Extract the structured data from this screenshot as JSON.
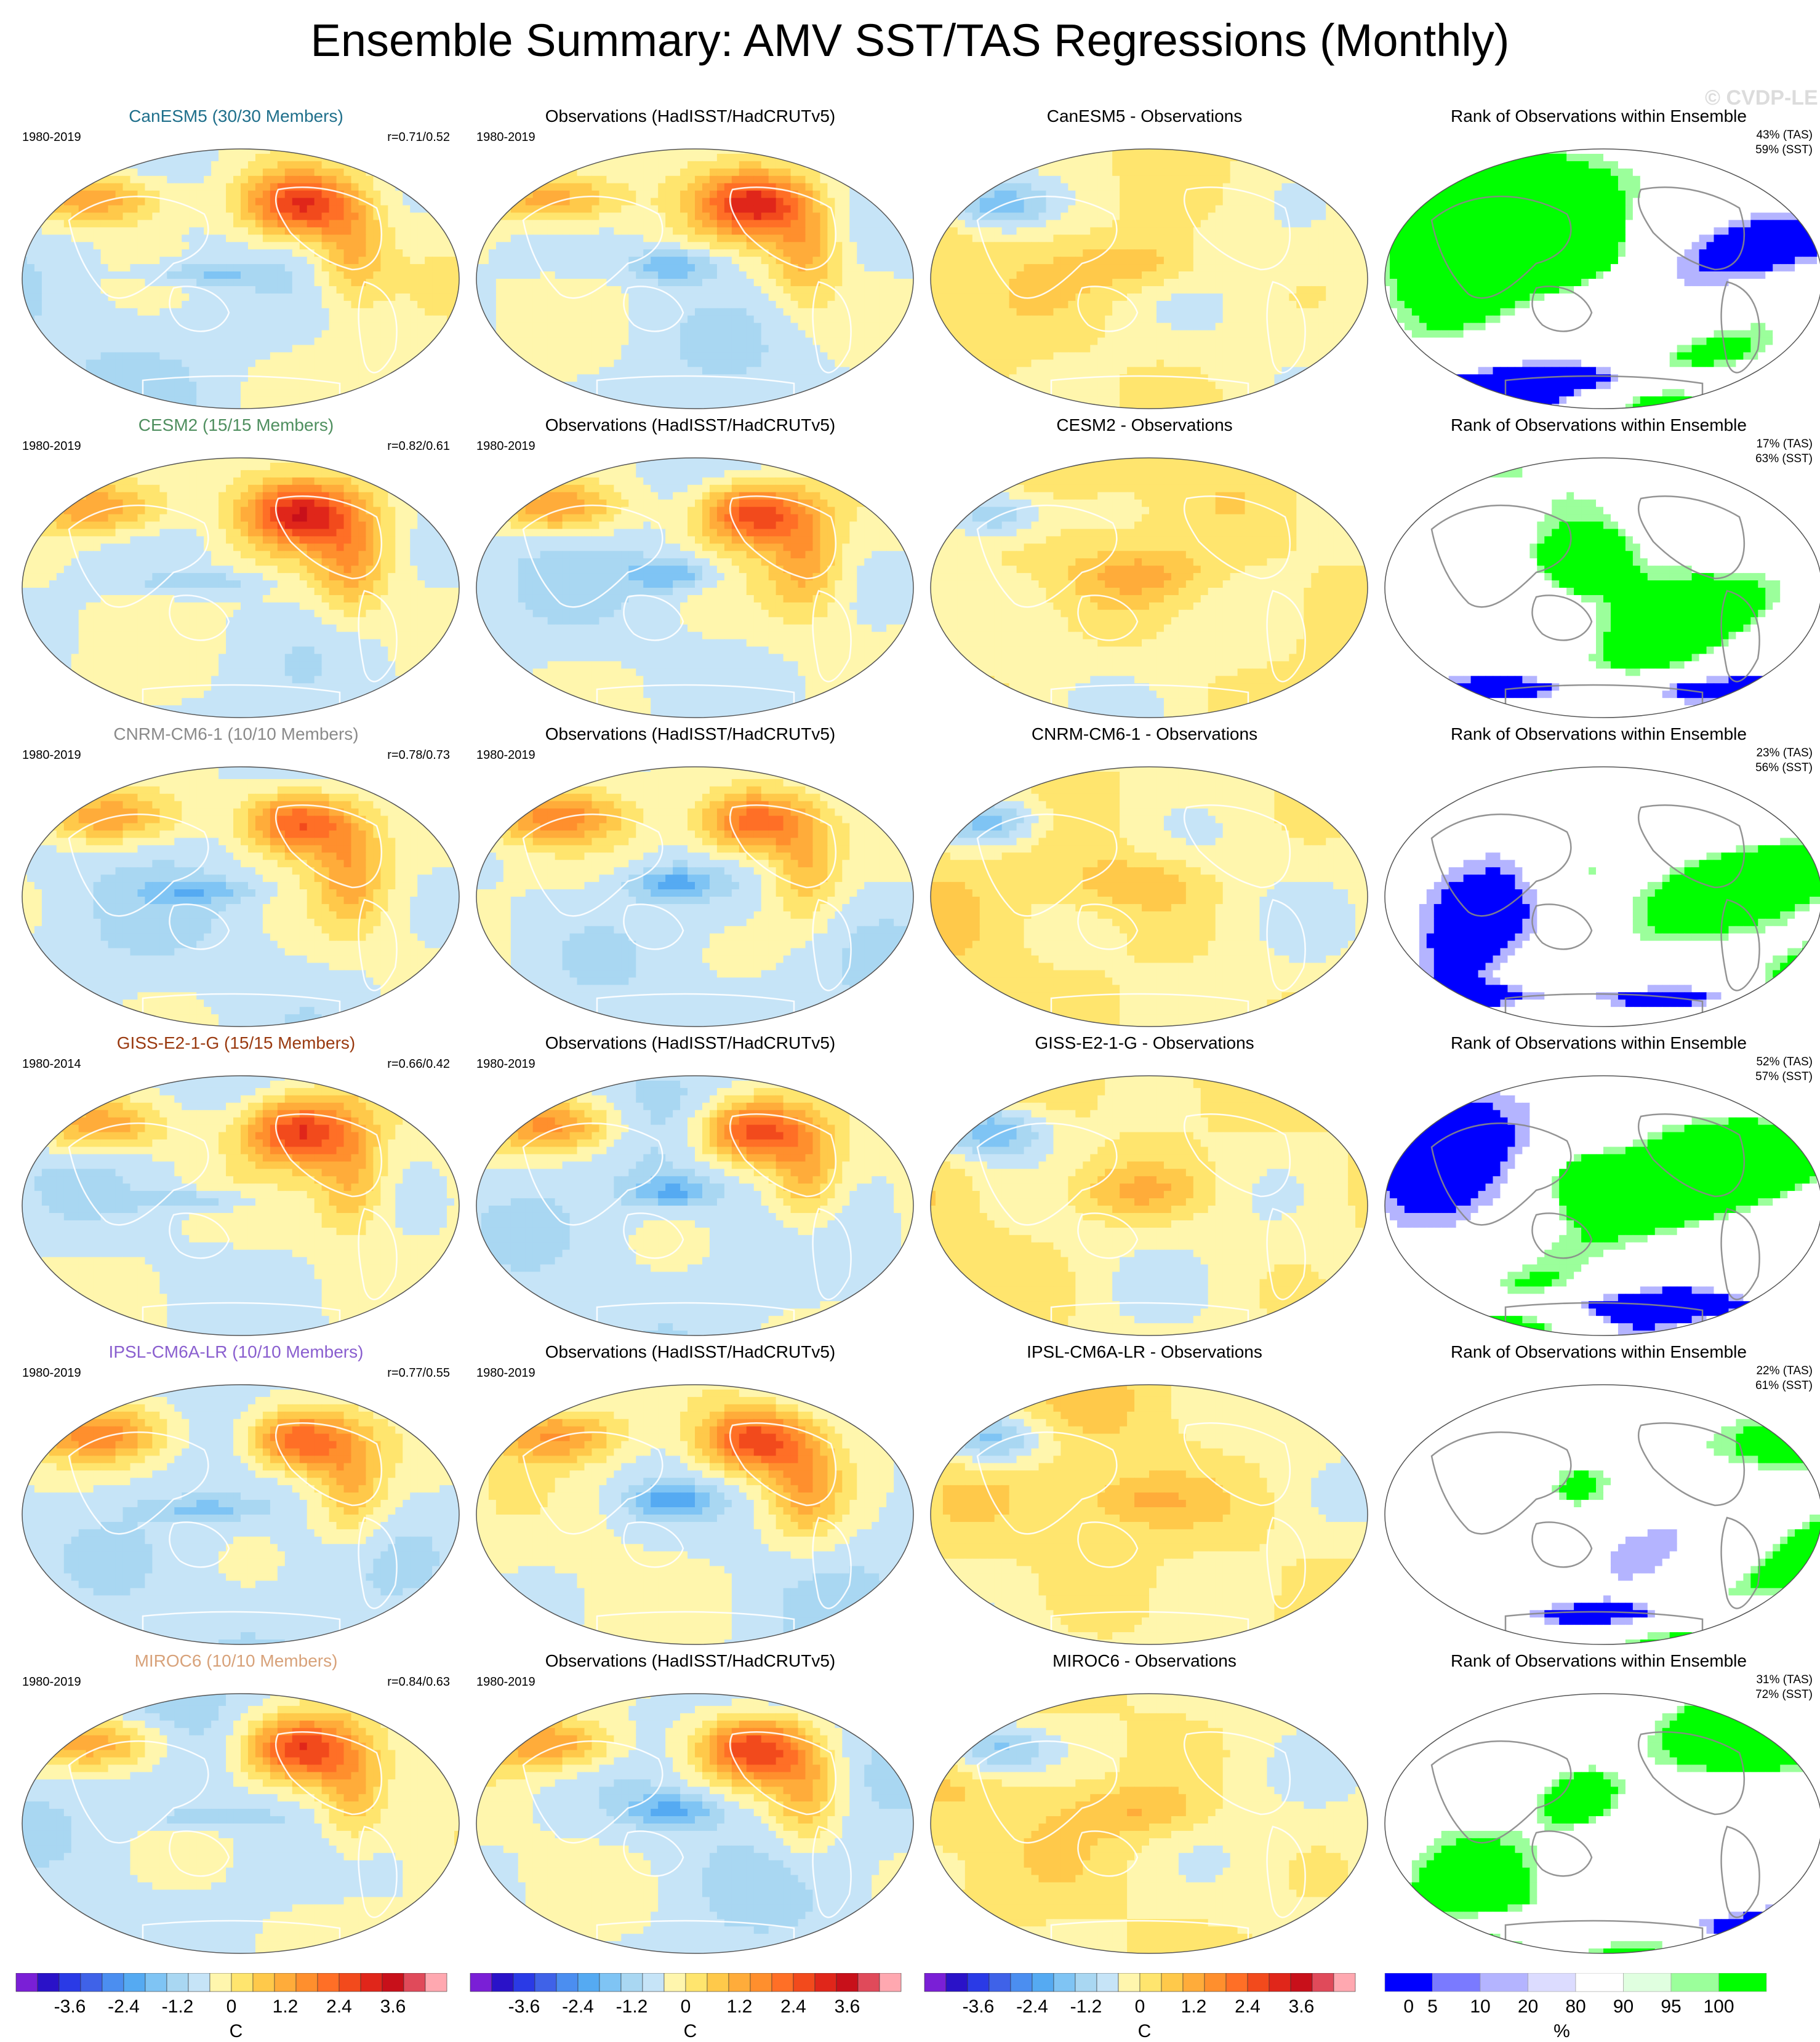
{
  "title": "Ensemble Summary: AMV SST/TAS Regressions (Monthly)",
  "watermark": "© CVDP-LE",
  "obs_title": "Observations (HadISST/HadCRUTv5)",
  "rank_title": "Rank of Observations within Ensemble",
  "colors": {
    "canesm5": "#1f6f8b",
    "cesm2": "#4f8f5f",
    "cnrm": "#8a8a8a",
    "giss": "#9a3a10",
    "ipsl": "#8a5fcf",
    "miroc6": "#d8a27a"
  },
  "rows": [
    {
      "model_title": "CanESM5 (30/30 Members)",
      "color_key": "canesm5",
      "model_years": "1980-2019",
      "corr": "r=0.71/0.52",
      "obs_years": "1980-2019",
      "diff_title": "CanESM5 - Observations",
      "rank_tas": "43% (TAS)",
      "rank_sst": "59% (SST)",
      "seed": 3
    },
    {
      "model_title": "CESM2 (15/15 Members)",
      "color_key": "cesm2",
      "model_years": "1980-2019",
      "corr": "r=0.82/0.61",
      "obs_years": "1980-2019",
      "diff_title": "CESM2 - Observations",
      "rank_tas": "17% (TAS)",
      "rank_sst": "63% (SST)",
      "seed": 7
    },
    {
      "model_title": "CNRM-CM6-1 (10/10 Members)",
      "color_key": "cnrm",
      "model_years": "1980-2019",
      "corr": "r=0.78/0.73",
      "obs_years": "1980-2019",
      "diff_title": "CNRM-CM6-1 - Observations",
      "rank_tas": "23% (TAS)",
      "rank_sst": "56% (SST)",
      "seed": 11
    },
    {
      "model_title": "GISS-E2-1-G (15/15 Members)",
      "color_key": "giss",
      "model_years": "1980-2014",
      "corr": "r=0.66/0.42",
      "obs_years": "1980-2019",
      "diff_title": "GISS-E2-1-G - Observations",
      "rank_tas": "52% (TAS)",
      "rank_sst": "57% (SST)",
      "seed": 13
    },
    {
      "model_title": "IPSL-CM6A-LR (10/10 Members)",
      "color_key": "ipsl",
      "model_years": "1980-2019",
      "corr": "r=0.77/0.55",
      "obs_years": "1980-2019",
      "diff_title": "IPSL-CM6A-LR - Observations",
      "rank_tas": "22% (TAS)",
      "rank_sst": "61% (SST)",
      "seed": 17
    },
    {
      "model_title": "MIROC6 (10/10 Members)",
      "color_key": "miroc6",
      "model_years": "1980-2019",
      "corr": "r=0.84/0.63",
      "obs_years": "1980-2019",
      "diff_title": "MIROC6 - Observations",
      "rank_tas": "31% (TAS)",
      "rank_sst": "72% (SST)",
      "seed": 19
    }
  ],
  "temp_colorbar": {
    "unit": "C",
    "tick_labels": [
      "-3.6",
      "-2.4",
      "-1.2",
      "0",
      "1.2",
      "2.4",
      "3.6"
    ],
    "tick_values": [
      -3.6,
      -2.4,
      -1.2,
      0,
      1.2,
      2.4,
      3.6
    ],
    "range": [
      -4.8,
      4.8
    ],
    "colors": [
      "#7a1fd6",
      "#2a12c8",
      "#2a3ae6",
      "#3f62e8",
      "#4b8ef0",
      "#55aaf2",
      "#7fc4f4",
      "#a9d7f2",
      "#c6e4f7",
      "#fff6ad",
      "#ffe56e",
      "#ffc94a",
      "#ffac3a",
      "#ff8f2d",
      "#ff6f26",
      "#f24a1c",
      "#e0261a",
      "#c8101a",
      "#e04a5a",
      "#ffa8b0"
    ]
  },
  "rank_colorbar": {
    "unit": "%",
    "tick_labels": [
      "0",
      "5",
      "10",
      "20",
      "80",
      "90",
      "95",
      "100"
    ],
    "bounds": [
      0,
      5,
      10,
      20,
      80,
      90,
      95,
      100
    ],
    "colors": [
      "#0000ff",
      "#7a7aff",
      "#b4b4ff",
      "#dcdcff",
      "#ffffff",
      "#e0ffe0",
      "#9bff9b",
      "#00ff00"
    ]
  }
}
